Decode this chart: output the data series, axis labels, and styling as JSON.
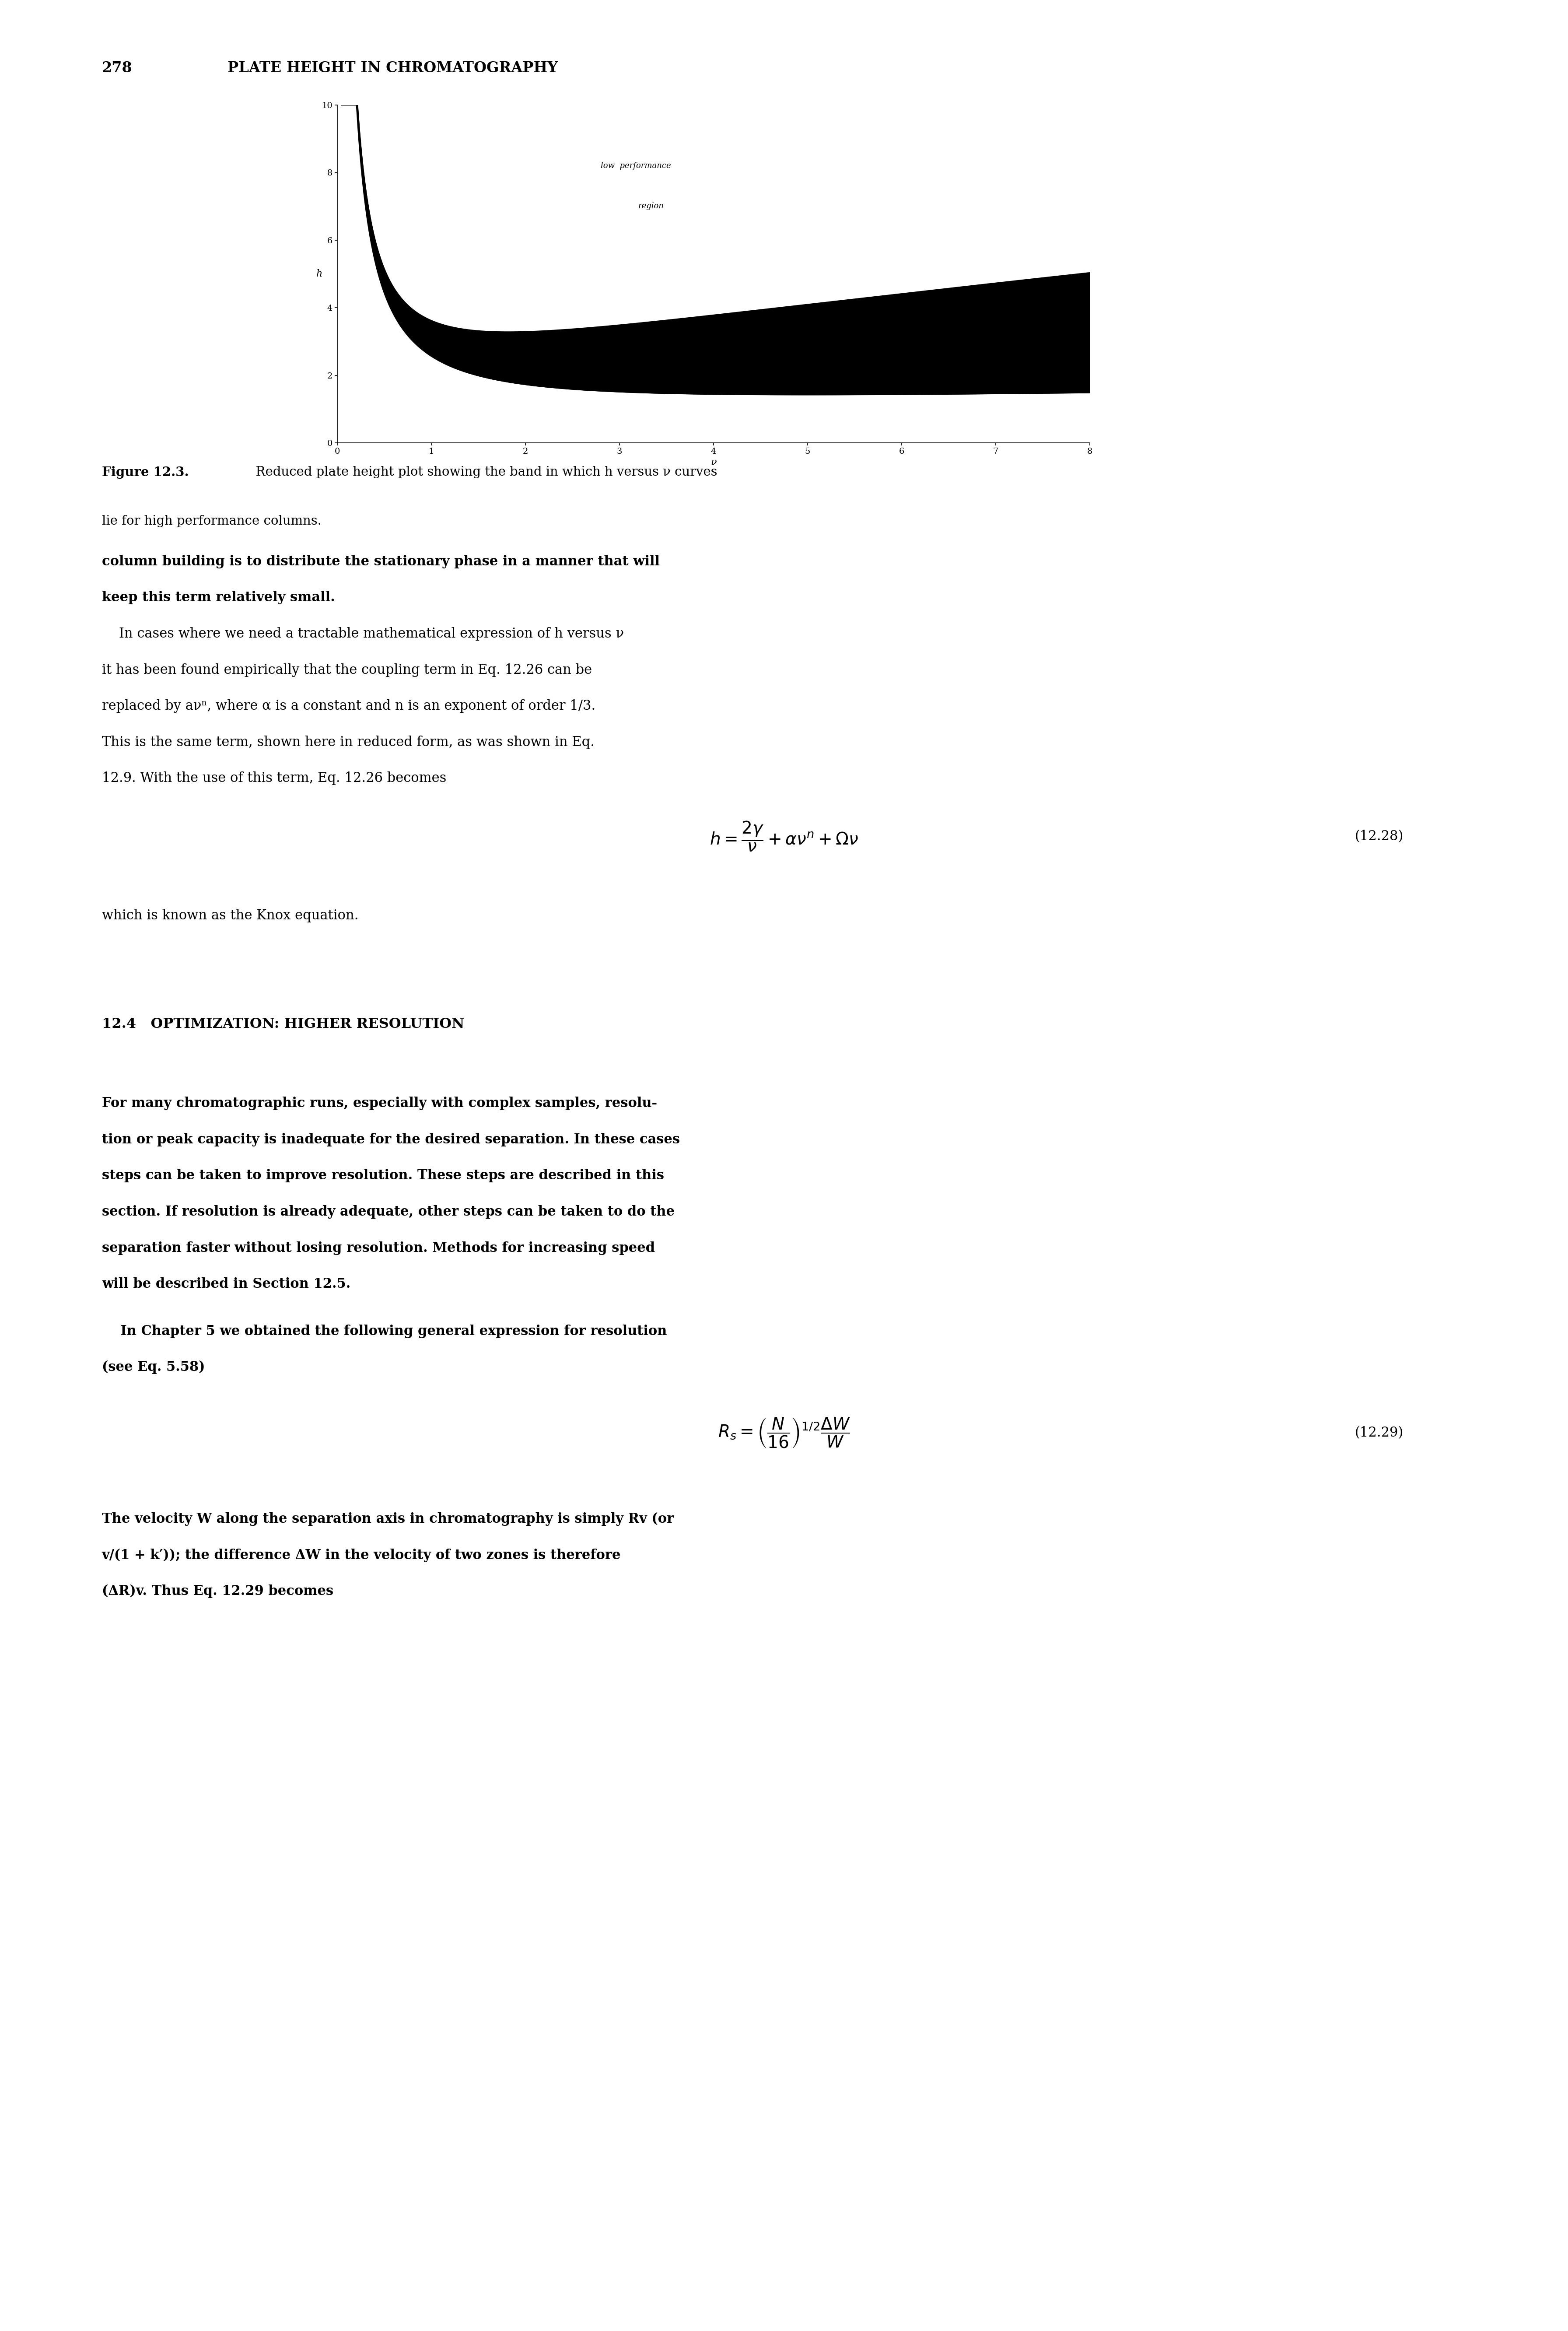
{
  "page_number": "278",
  "page_header": "PLATE HEIGHT IN CHROMATOGRAPHY",
  "plot_xlabel": "ν",
  "plot_ylabel": "h",
  "x_ticks": [
    0,
    1,
    2,
    3,
    4,
    5,
    6,
    7,
    8
  ],
  "y_ticks": [
    0,
    2,
    4,
    6,
    8,
    10
  ],
  "x_lim": [
    0,
    8
  ],
  "y_lim": [
    0,
    10
  ],
  "annotation_line1": "low  performance",
  "annotation_line2": "region",
  "background_color": "#ffffff",
  "text_color": "#000000",
  "caption_bold": "Figure 12.3.",
  "caption_normal": "  Reduced plate height plot showing the band in which h versus ν curves",
  "caption_line2": "lie for high performance columns.",
  "body_fontsize": 22,
  "header_fontsize": 24,
  "caption_fontsize": 21,
  "eq_fontsize": 28,
  "section_fontsize": 23
}
